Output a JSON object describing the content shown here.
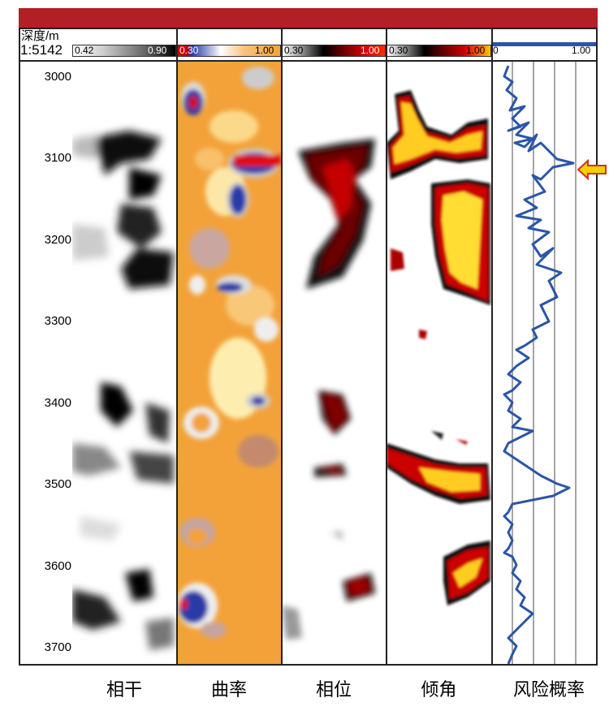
{
  "header": {
    "depth_label": "深度/m",
    "scale_label": "1:5142"
  },
  "scales": [
    {
      "min": "0.42",
      "max": "0.90",
      "colors": [
        "#ffffff",
        "#000000"
      ]
    },
    {
      "min": "0.30",
      "max": "1.00",
      "colors": [
        "#cc0000",
        "#2b3aa8",
        "#ffffff",
        "#f5a531",
        "#f5a531"
      ]
    },
    {
      "min": "0.30",
      "max": "1.00",
      "colors": [
        "#ffffff",
        "#000000",
        "#7a0000",
        "#ff2a00"
      ]
    },
    {
      "min": "0.30",
      "max": "1.00",
      "colors": [
        "#ffffff",
        "#000000",
        "#cc0000",
        "#ffcc00"
      ]
    },
    {
      "min": "0",
      "max": "1.00",
      "colors": [
        "#2b55a6",
        "#2b55a6"
      ]
    }
  ],
  "depth_ticks": [
    "3000",
    "3100",
    "3200",
    "3300",
    "3400",
    "3500",
    "3600",
    "3700"
  ],
  "track_labels": [
    "相干",
    "曲率",
    "相位",
    "倾角",
    "风险概率"
  ],
  "colors": {
    "title_bar": "#b21f24",
    "risk_curve": "#2b55a6",
    "marker_arrow": "#f4d000",
    "marker_outline": "#d32f2f"
  }
}
